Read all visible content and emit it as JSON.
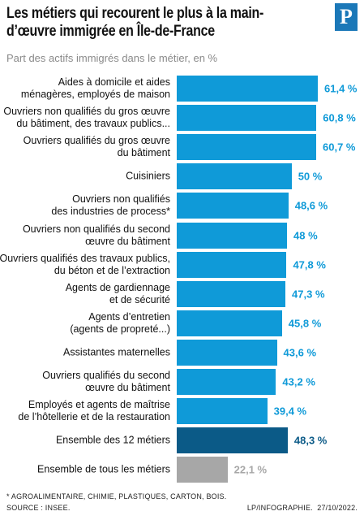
{
  "chart_data": {
    "type": "bar",
    "orientation": "horizontal",
    "title": "Les métiers qui recourent le plus à la main-\nd’œuvre immigrée en Île-de-France",
    "subtitle": "Part des actifs immigrés dans le métier, en %",
    "logo": "P",
    "categories": [
      "Aides à domicile et aides\nménagères, employés de maison",
      "Ouvriers non qualifiés du gros œuvre\ndu bâtiment, des travaux publics...",
      "Ouvriers qualifiés du gros œuvre\ndu bâtiment",
      "Cuisiniers",
      "Ouvriers non qualifiés\ndes industries de process*",
      "Ouvriers non qualifiés du second\nœuvre du bâtiment",
      "Ouvriers qualifiés des travaux publics,\ndu béton et de l’extraction",
      "Agents de gardiennage\net de sécurité",
      "Agents d’entretien\n(agents de propreté...)",
      "Assistantes maternelles",
      "Ouvriers qualifiés du second\nœuvre du bâtiment",
      "Employés et agents de maîtrise\nde l’hôtellerie et de la restauration",
      "Ensemble des 12 métiers",
      "Ensemble de tous les métiers"
    ],
    "values": [
      61.4,
      60.8,
      60.7,
      50,
      48.6,
      48,
      47.8,
      47.3,
      45.8,
      43.6,
      43.2,
      39.4,
      48.3,
      22.1
    ],
    "value_labels": [
      "61,4 %",
      "60,8 %",
      "60,7 %",
      "50 %",
      "48,6 %",
      "48 %",
      "47,8 %",
      "47,3 %",
      "45,8 %",
      "43,6 %",
      "43,2 %",
      "39,4 %",
      "48,3 %",
      "22,1 %"
    ],
    "colors": [
      "#0f9ad8",
      "#0f9ad8",
      "#0f9ad8",
      "#0f9ad8",
      "#0f9ad8",
      "#0f9ad8",
      "#0f9ad8",
      "#0f9ad8",
      "#0f9ad8",
      "#0f9ad8",
      "#0f9ad8",
      "#0f9ad8",
      "#0b5a87",
      "#a7a7a7"
    ],
    "footnote": "* AGROALIMENTAIRE, CHIMIE, PLASTIQUES, CARTON, BOIS.",
    "source": "SOURCE : INSEE.",
    "credit": "LP/INFOGRAPHIE.  27/10/2022."
  }
}
